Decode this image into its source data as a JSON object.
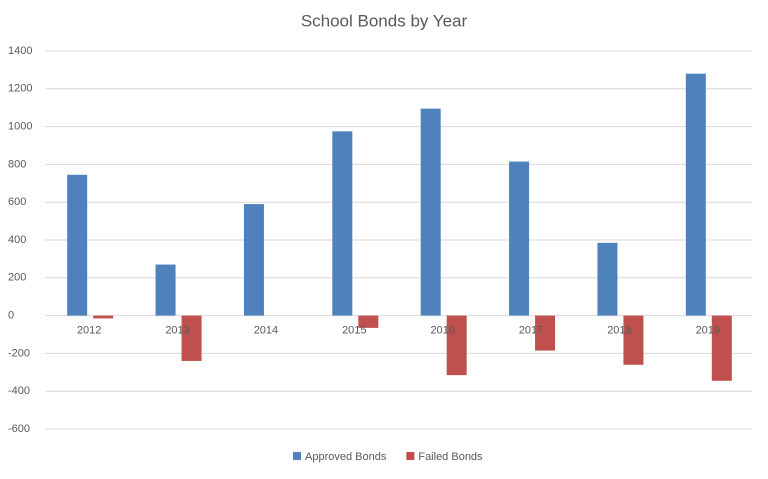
{
  "chart_data": {
    "type": "bar",
    "title": "School Bonds by Year",
    "categories": [
      "2012",
      "2013",
      "2014",
      "2015",
      "2016",
      "2017",
      "2018",
      "2019"
    ],
    "series": [
      {
        "name": "Approved Bonds",
        "color": "#4f81bd",
        "values": [
          745,
          270,
          590,
          975,
          1095,
          815,
          385,
          1280
        ]
      },
      {
        "name": "Failed Bonds",
        "color": "#c0504d",
        "values": [
          -15,
          -240,
          0,
          -65,
          -315,
          -185,
          -260,
          -345
        ]
      }
    ],
    "ylim": [
      -600,
      1400
    ],
    "yticks": [
      -600,
      -400,
      -200,
      0,
      200,
      400,
      600,
      800,
      1000,
      1200,
      1400
    ],
    "grid": true,
    "legend": "bottom"
  }
}
